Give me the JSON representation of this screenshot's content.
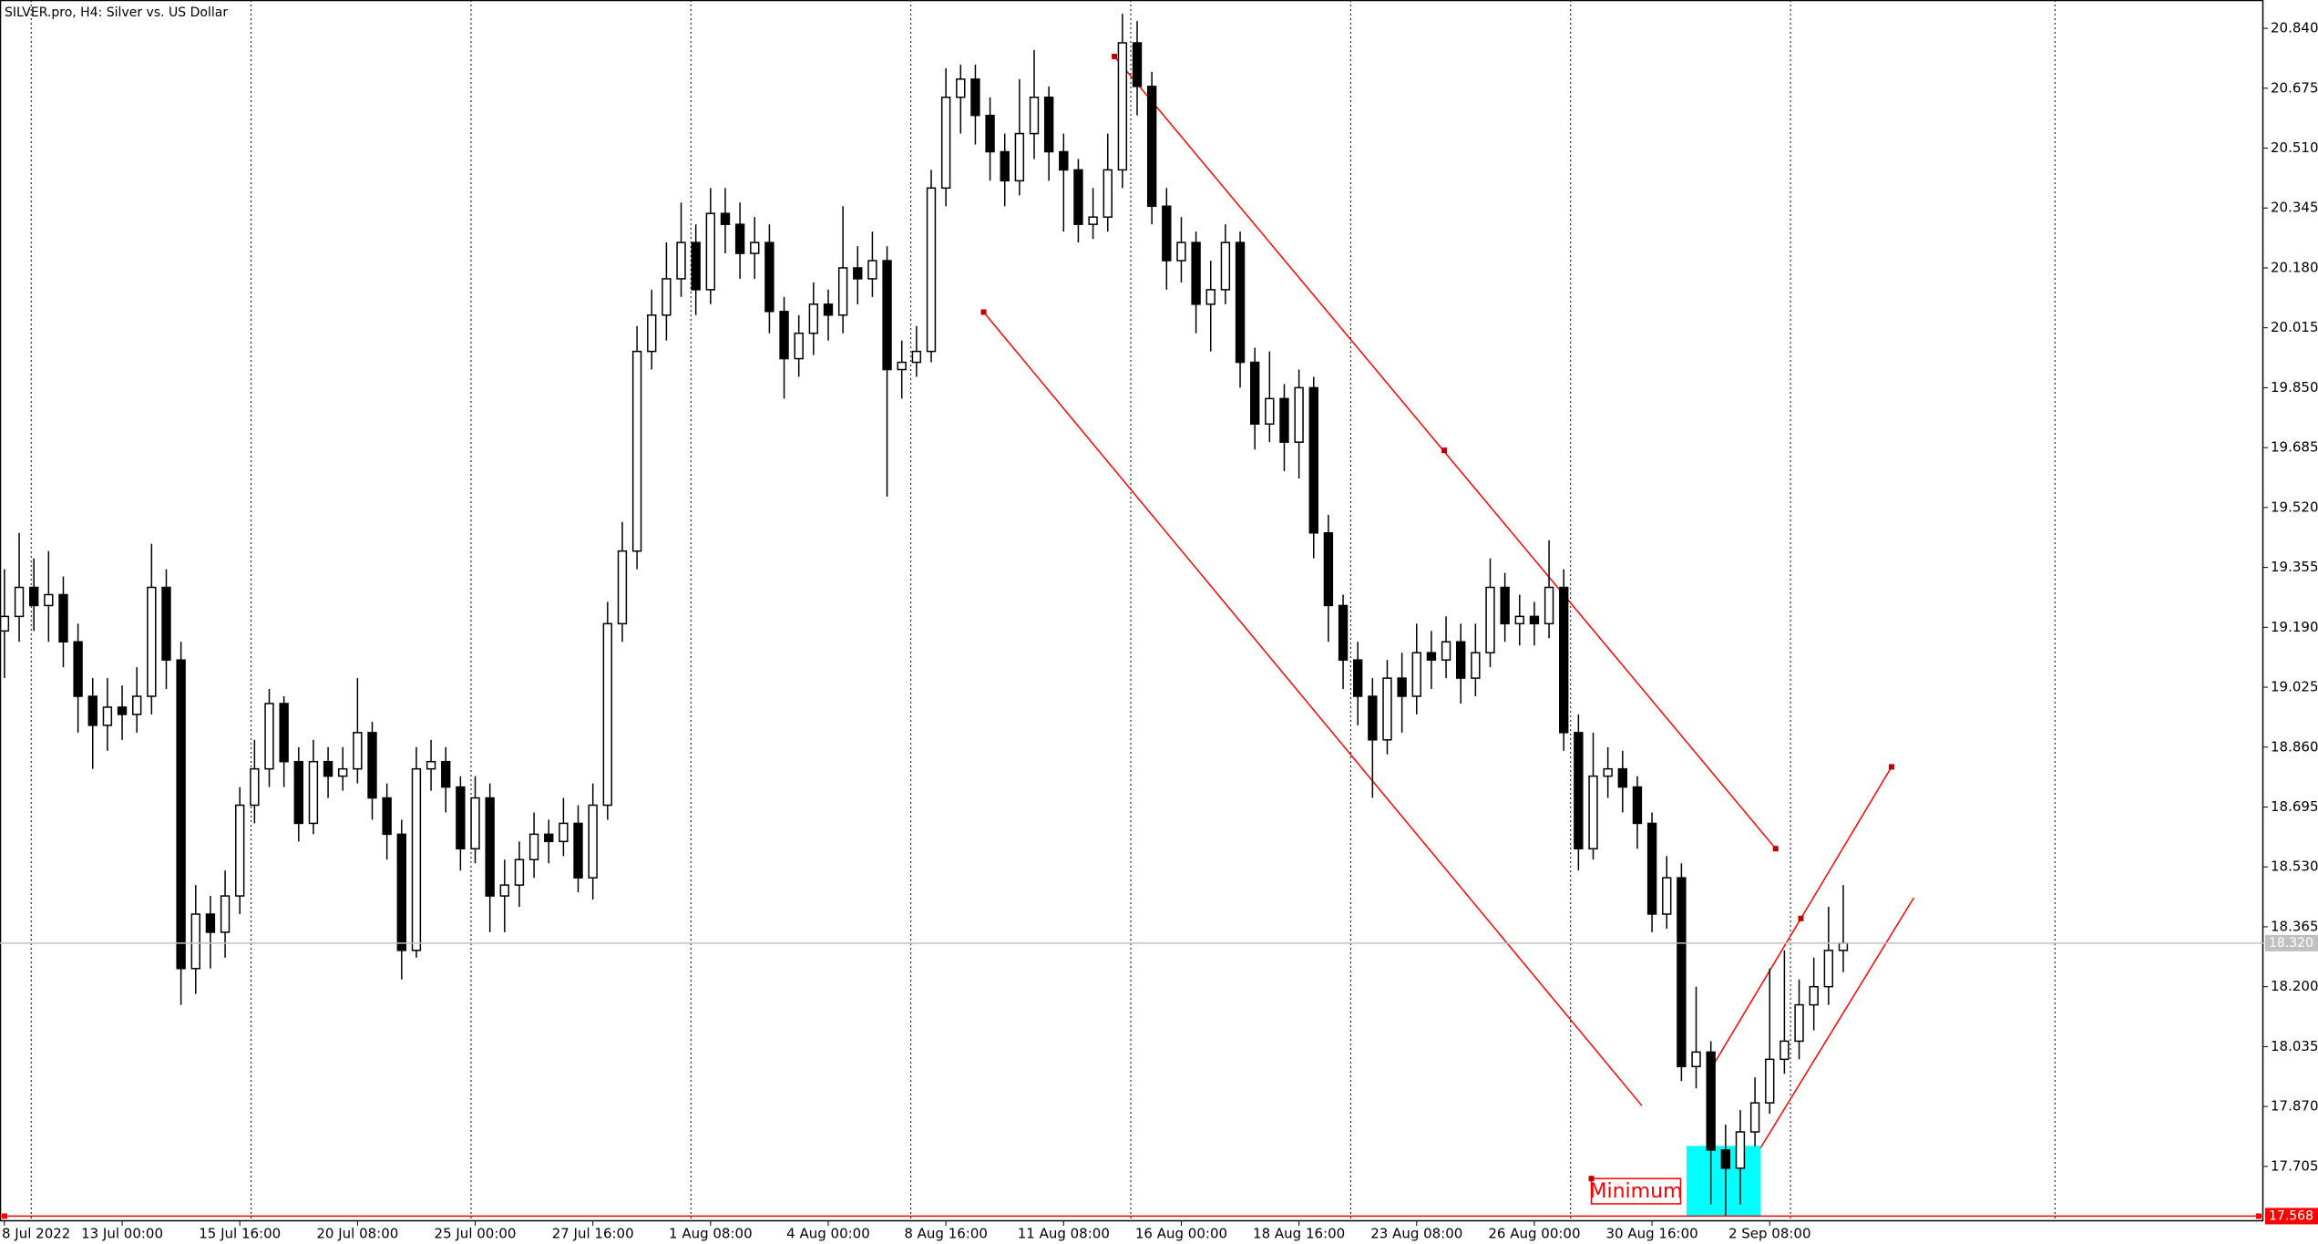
{
  "chart_data": {
    "type": "candlestick",
    "title": "SILVER.pro, H4:  Silver vs. US Dollar",
    "categories": [
      "8 Jul 2022",
      null,
      null,
      null,
      null,
      null,
      null,
      null,
      "13 Jul 00:00",
      null,
      null,
      null,
      null,
      null,
      null,
      null,
      "15 Jul 16:00",
      null,
      null,
      null,
      null,
      null,
      null,
      null,
      "20 Jul 08:00",
      null,
      null,
      null,
      null,
      null,
      null,
      null,
      "25 Jul 00:00",
      null,
      null,
      null,
      null,
      null,
      null,
      null,
      "27 Jul 16:00",
      null,
      null,
      null,
      null,
      null,
      null,
      null,
      "1 Aug 08:00",
      null,
      null,
      null,
      null,
      null,
      null,
      null,
      "4 Aug 00:00",
      null,
      null,
      null,
      null,
      null,
      null,
      null,
      "8 Aug 16:00",
      null,
      null,
      null,
      null,
      null,
      null,
      null,
      "11 Aug 08:00",
      null,
      null,
      null,
      null,
      null,
      null,
      null,
      "16 Aug 00:00",
      null,
      null,
      null,
      null,
      null,
      null,
      null,
      "18 Aug 16:00",
      null,
      null,
      null,
      null,
      null,
      null,
      null,
      "23 Aug 08:00",
      null,
      null,
      null,
      null,
      null,
      null,
      null,
      "26 Aug 00:00",
      null,
      null,
      null,
      null,
      null,
      null,
      null,
      "30 Aug 16:00",
      null,
      null,
      null,
      null,
      null,
      null,
      null,
      "2 Sep 08:00",
      null,
      null,
      null,
      null,
      null
    ],
    "open": [
      19.18,
      19.22,
      19.3,
      19.25,
      19.28,
      19.15,
      19.0,
      18.92,
      18.97,
      18.95,
      19.0,
      19.3,
      19.1,
      18.25,
      18.4,
      18.35,
      18.45,
      18.7,
      18.8,
      18.98,
      18.82,
      18.65,
      18.82,
      18.78,
      18.8,
      18.9,
      18.72,
      18.62,
      18.3,
      18.8,
      18.82,
      18.75,
      18.58,
      18.72,
      18.45,
      18.48,
      18.55,
      18.62,
      18.6,
      18.65,
      18.5,
      18.7,
      19.2,
      19.4,
      19.95,
      20.05,
      20.15,
      20.25,
      20.12,
      20.33,
      20.3,
      20.22,
      20.25,
      20.06,
      19.93,
      20.0,
      20.08,
      20.05,
      20.18,
      20.15,
      20.2,
      19.9,
      19.92,
      19.95,
      20.4,
      20.65,
      20.7,
      20.6,
      20.5,
      20.42,
      20.55,
      20.65,
      20.5,
      20.45,
      20.3,
      20.32,
      20.45,
      20.8,
      20.68,
      20.35,
      20.2,
      20.25,
      20.08,
      20.12,
      20.25,
      19.92,
      19.75,
      19.82,
      19.7,
      19.85,
      19.45,
      19.25,
      19.1,
      19.0,
      18.88,
      19.05,
      19.0,
      19.12,
      19.1,
      19.15,
      19.05,
      19.12,
      19.3,
      19.2,
      19.22,
      19.2,
      19.3,
      18.9,
      18.58,
      18.78,
      18.8,
      18.75,
      18.65,
      18.4,
      18.5,
      17.98,
      18.02,
      17.75,
      17.7,
      17.8,
      17.88,
      18.0,
      18.05,
      18.15,
      18.2,
      18.3
    ],
    "high": [
      19.35,
      19.45,
      19.38,
      19.4,
      19.33,
      19.2,
      19.05,
      19.05,
      19.03,
      19.08,
      19.42,
      19.35,
      19.15,
      18.48,
      18.45,
      18.52,
      18.75,
      18.88,
      19.02,
      19.0,
      18.86,
      18.88,
      18.86,
      18.86,
      19.05,
      18.93,
      18.76,
      18.66,
      18.86,
      18.88,
      18.86,
      18.78,
      18.78,
      18.76,
      18.55,
      18.6,
      18.68,
      18.66,
      18.72,
      18.7,
      18.76,
      19.26,
      19.48,
      20.02,
      20.12,
      20.25,
      20.36,
      20.3,
      20.4,
      20.4,
      20.36,
      20.32,
      20.3,
      20.1,
      20.05,
      20.14,
      20.12,
      20.35,
      20.24,
      20.28,
      20.24,
      19.98,
      20.02,
      20.45,
      20.73,
      20.74,
      20.74,
      20.65,
      20.55,
      20.7,
      20.78,
      20.68,
      20.55,
      20.48,
      20.4,
      20.55,
      20.88,
      20.86,
      20.72,
      20.4,
      20.32,
      20.28,
      20.2,
      20.3,
      20.28,
      19.96,
      19.95,
      19.86,
      19.9,
      19.88,
      19.5,
      19.28,
      19.15,
      19.05,
      19.1,
      19.12,
      19.2,
      19.18,
      19.22,
      19.2,
      19.2,
      19.38,
      19.34,
      19.28,
      19.26,
      19.43,
      19.35,
      18.95,
      18.9,
      18.86,
      18.85,
      18.78,
      18.68,
      18.56,
      18.54,
      18.2,
      18.05,
      17.82,
      17.86,
      17.95,
      18.25,
      18.3,
      18.22,
      18.28,
      18.42,
      18.48
    ],
    "low": [
      19.05,
      19.15,
      19.18,
      19.15,
      19.08,
      18.9,
      18.8,
      18.85,
      18.88,
      18.9,
      18.95,
      19.02,
      18.15,
      18.18,
      18.25,
      18.28,
      18.4,
      18.65,
      18.75,
      18.75,
      18.6,
      18.62,
      18.72,
      18.74,
      18.76,
      18.66,
      18.55,
      18.22,
      18.28,
      18.74,
      18.68,
      18.52,
      18.54,
      18.35,
      18.35,
      18.42,
      18.5,
      18.54,
      18.56,
      18.46,
      18.44,
      18.66,
      19.15,
      19.35,
      19.9,
      19.98,
      20.1,
      20.05,
      20.08,
      20.22,
      20.15,
      20.15,
      20.0,
      19.82,
      19.88,
      19.94,
      19.98,
      20.0,
      20.08,
      20.1,
      19.55,
      19.82,
      19.88,
      19.92,
      20.35,
      20.55,
      20.52,
      20.42,
      20.35,
      20.38,
      20.48,
      20.42,
      20.28,
      20.25,
      20.26,
      20.28,
      20.4,
      20.6,
      20.3,
      20.12,
      20.14,
      20.0,
      19.95,
      20.08,
      19.85,
      19.68,
      19.7,
      19.62,
      19.6,
      19.38,
      19.15,
      19.02,
      18.92,
      18.72,
      18.84,
      18.9,
      18.95,
      19.02,
      19.05,
      18.98,
      19.0,
      19.08,
      19.15,
      19.14,
      19.14,
      19.16,
      18.85,
      18.52,
      18.55,
      18.72,
      18.68,
      18.58,
      18.35,
      18.36,
      17.94,
      17.92,
      17.6,
      17.57,
      17.6,
      17.76,
      17.85,
      17.96,
      18.0,
      18.08,
      18.15,
      18.24
    ],
    "close": [
      19.22,
      19.3,
      19.25,
      19.28,
      19.15,
      19.0,
      18.92,
      18.97,
      18.95,
      19.0,
      19.3,
      19.1,
      18.25,
      18.4,
      18.35,
      18.45,
      18.7,
      18.8,
      18.98,
      18.82,
      18.65,
      18.82,
      18.78,
      18.8,
      18.9,
      18.72,
      18.62,
      18.3,
      18.8,
      18.82,
      18.75,
      18.58,
      18.72,
      18.45,
      18.48,
      18.55,
      18.62,
      18.6,
      18.65,
      18.5,
      18.7,
      19.2,
      19.4,
      19.95,
      20.05,
      20.15,
      20.25,
      20.12,
      20.33,
      20.3,
      20.22,
      20.25,
      20.06,
      19.93,
      20.0,
      20.08,
      20.05,
      20.18,
      20.15,
      20.2,
      19.9,
      19.92,
      19.95,
      20.4,
      20.65,
      20.7,
      20.6,
      20.5,
      20.42,
      20.55,
      20.65,
      20.5,
      20.45,
      20.3,
      20.32,
      20.45,
      20.8,
      20.68,
      20.35,
      20.2,
      20.25,
      20.08,
      20.12,
      20.25,
      19.92,
      19.75,
      19.82,
      19.7,
      19.85,
      19.45,
      19.25,
      19.1,
      19.0,
      18.88,
      19.05,
      19.0,
      19.12,
      19.1,
      19.15,
      19.05,
      19.12,
      19.3,
      19.2,
      19.22,
      19.2,
      19.3,
      18.9,
      18.58,
      18.78,
      18.8,
      18.75,
      18.65,
      18.4,
      18.5,
      17.98,
      18.02,
      17.75,
      17.7,
      17.8,
      17.88,
      18.0,
      18.05,
      18.15,
      18.2,
      18.3,
      18.32
    ],
    "up_color": "#ffffff",
    "down_color": "#000000",
    "ylim": [
      17.554,
      20.918
    ],
    "yticks": [
      {
        "value": 20.84,
        "label": "20.840"
      },
      {
        "value": 20.675,
        "label": "20.675"
      },
      {
        "value": 20.51,
        "label": "20.510"
      },
      {
        "value": 20.345,
        "label": "20.345"
      },
      {
        "value": 20.18,
        "label": "20.180"
      },
      {
        "value": 20.015,
        "label": "20.015"
      },
      {
        "value": 19.85,
        "label": "19.850"
      },
      {
        "value": 19.685,
        "label": "19.685"
      },
      {
        "value": 19.52,
        "label": "19.520"
      },
      {
        "value": 19.355,
        "label": "19.355"
      },
      {
        "value": 19.19,
        "label": "19.190"
      },
      {
        "value": 19.025,
        "label": "19.025"
      },
      {
        "value": 18.86,
        "label": "18.860"
      },
      {
        "value": 18.695,
        "label": "18.695"
      },
      {
        "value": 18.53,
        "label": "18.530"
      },
      {
        "value": 18.365,
        "label": "18.365"
      },
      {
        "value": 18.2,
        "label": "18.200"
      },
      {
        "value": 18.035,
        "label": "18.035"
      },
      {
        "value": 17.87,
        "label": "17.870"
      },
      {
        "value": 17.705,
        "label": "17.705"
      }
    ],
    "hlines": [
      {
        "value": 18.32,
        "label": "18.320",
        "color": "#c0c0c0"
      },
      {
        "value": 17.568,
        "label": "17.568",
        "color": "#ff0000"
      }
    ],
    "annotation": "Minimum"
  }
}
